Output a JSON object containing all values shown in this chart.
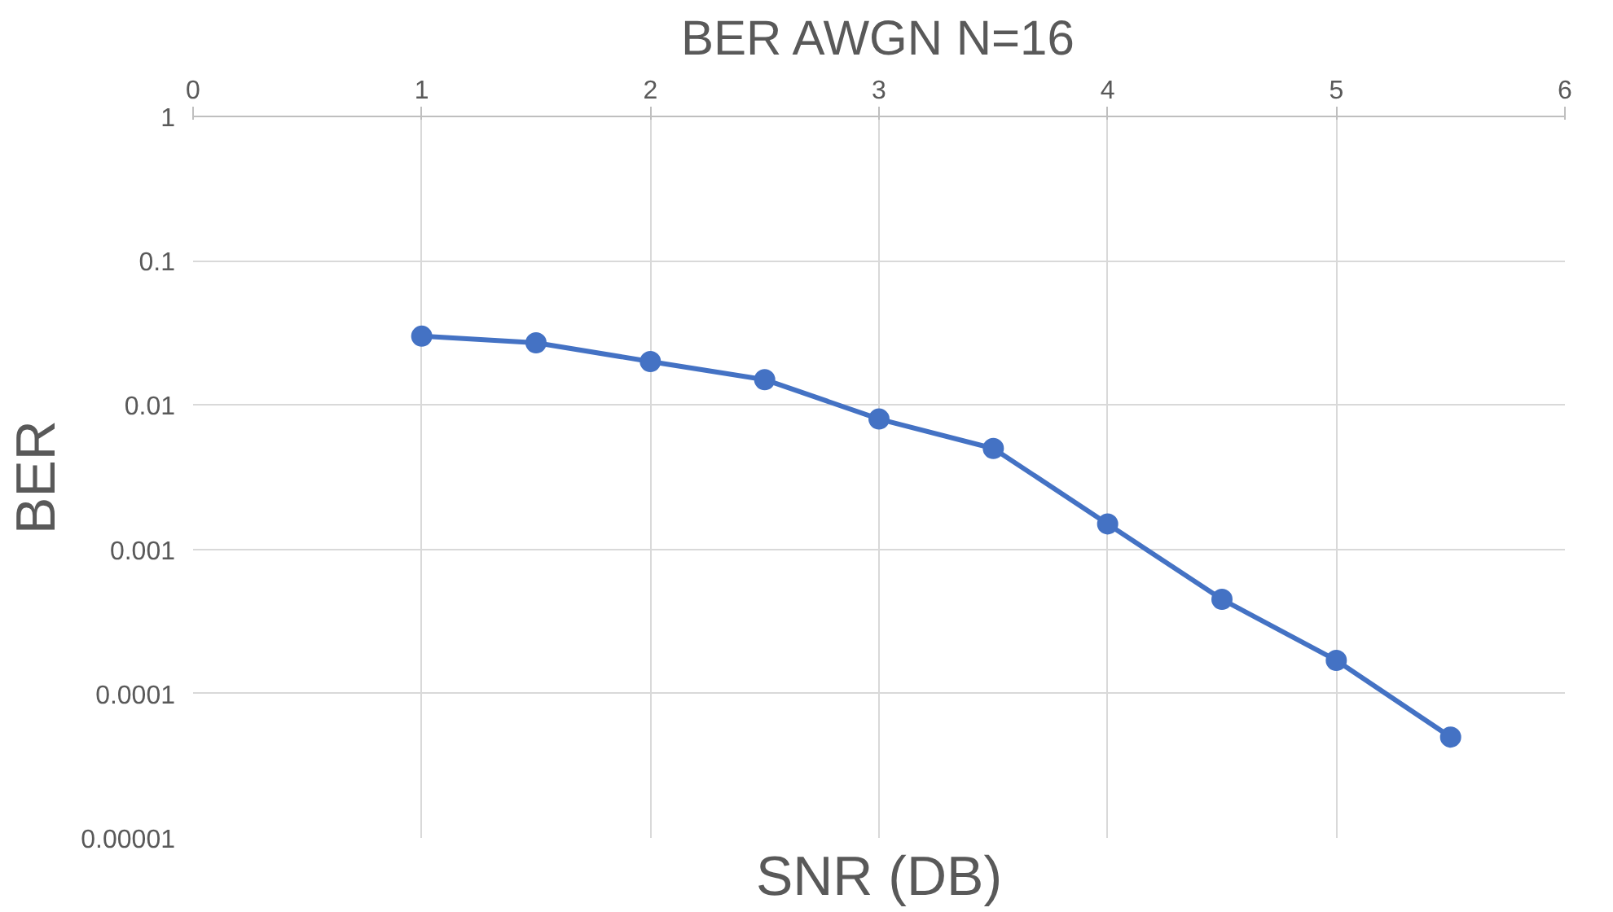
{
  "chart_data": {
    "type": "line",
    "title": "BER AWGN N=16",
    "xlabel": "SNR (DB)",
    "ylabel": "BER",
    "x": [
      1,
      1.5,
      2,
      2.5,
      3,
      3.5,
      4,
      4.5,
      5,
      5.5
    ],
    "series": [
      {
        "color": "#4472c4",
        "values": [
          0.03,
          0.027,
          0.02,
          0.015,
          0.008,
          0.005,
          0.0015,
          0.00045,
          0.00017,
          5e-05
        ]
      }
    ],
    "xlim": [
      0,
      6
    ],
    "xticks": [
      0,
      1,
      2,
      3,
      4,
      5,
      6
    ],
    "ylim": [
      1e-05,
      1
    ],
    "yticks": [
      {
        "value": 1e-05,
        "label": "0.00001"
      },
      {
        "value": 0.0001,
        "label": "0.0001"
      },
      {
        "value": 0.001,
        "label": "0.001"
      },
      {
        "value": 0.01,
        "label": "0.01"
      },
      {
        "value": 0.1,
        "label": "0.1"
      },
      {
        "value": 1,
        "label": "1"
      }
    ],
    "log": "y",
    "grid": true,
    "marker": "circle",
    "line_style": "solid"
  }
}
